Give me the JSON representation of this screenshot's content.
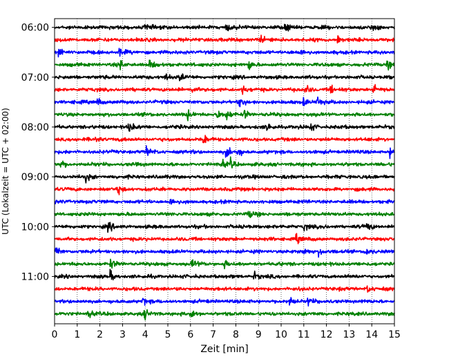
{
  "chart_data": {
    "type": "line",
    "title": "",
    "xlabel": "Zeit  [min]",
    "ylabel": "UTC (Lokalzeit = UTC + 02:00)",
    "xlim": [
      0,
      15
    ],
    "x_ticks": [
      0,
      1,
      2,
      3,
      4,
      5,
      6,
      7,
      8,
      9,
      10,
      11,
      12,
      13,
      14,
      15
    ],
    "y_tick_labels": [
      "06:00",
      "07:00",
      "08:00",
      "09:00",
      "10:00",
      "11:00"
    ],
    "grid": "vertical dotted at each minute",
    "trace_colors": [
      "#000000",
      "#ff0000",
      "#0000ff",
      "#008000"
    ],
    "trace_start_times": [
      "06:00",
      "06:15",
      "06:30",
      "06:45",
      "07:00",
      "07:15",
      "07:30",
      "07:45",
      "08:00",
      "08:15",
      "08:30",
      "08:45",
      "09:00",
      "09:15",
      "09:30",
      "09:45",
      "10:00",
      "10:15",
      "10:30",
      "10:45",
      "11:00",
      "11:15",
      "11:30",
      "11:45"
    ],
    "trace_minutes_per_row": 15,
    "events": [
      {
        "row": 0,
        "minutes": [
          4.0,
          7.6,
          10.2,
          14.0
        ]
      },
      {
        "row": 1,
        "minutes": [
          9.1,
          12.5
        ]
      },
      {
        "row": 2,
        "minutes": [
          0.2,
          2.9,
          10.8
        ]
      },
      {
        "row": 3,
        "minutes": [
          2.9,
          4.2,
          8.6,
          14.7
        ]
      },
      {
        "row": 4,
        "minutes": [
          4.9,
          5.5
        ]
      },
      {
        "row": 5,
        "minutes": [
          6.1,
          8.3,
          11.1,
          12.2,
          14.1
        ]
      },
      {
        "row": 6,
        "minutes": [
          1.9,
          8.2,
          11.0,
          11.6
        ]
      },
      {
        "row": 7,
        "minutes": [
          5.9,
          7.2,
          7.6,
          8.4
        ]
      },
      {
        "row": 8,
        "minutes": [
          3.3,
          9.4,
          11.3
        ]
      },
      {
        "row": 9,
        "minutes": [
          1.8,
          6.6
        ]
      },
      {
        "row": 10,
        "minutes": [
          4.1,
          7.6,
          8.1,
          14.8
        ]
      },
      {
        "row": 11,
        "minutes": [
          0.3,
          7.4,
          7.8
        ]
      },
      {
        "row": 12,
        "minutes": [
          1.4
        ]
      },
      {
        "row": 13,
        "minutes": [
          2.8
        ]
      },
      {
        "row": 14,
        "minutes": [
          5.1
        ]
      },
      {
        "row": 15,
        "minutes": [
          8.6
        ]
      },
      {
        "row": 16,
        "minutes": [
          2.4,
          11.0,
          13.8
        ]
      },
      {
        "row": 17,
        "minutes": [
          10.7
        ]
      },
      {
        "row": 18,
        "minutes": [
          0.1,
          11.0,
          11.7,
          13.7
        ]
      },
      {
        "row": 19,
        "minutes": [
          2.5,
          6.1,
          7.5
        ]
      },
      {
        "row": 20,
        "minutes": [
          2.5,
          8.8
        ]
      },
      {
        "row": 21,
        "minutes": [
          13.8
        ]
      },
      {
        "row": 22,
        "minutes": [
          3.9,
          10.4,
          11.2
        ]
      },
      {
        "row": 23,
        "minutes": [
          1.5,
          4.0,
          6.0
        ]
      }
    ]
  }
}
